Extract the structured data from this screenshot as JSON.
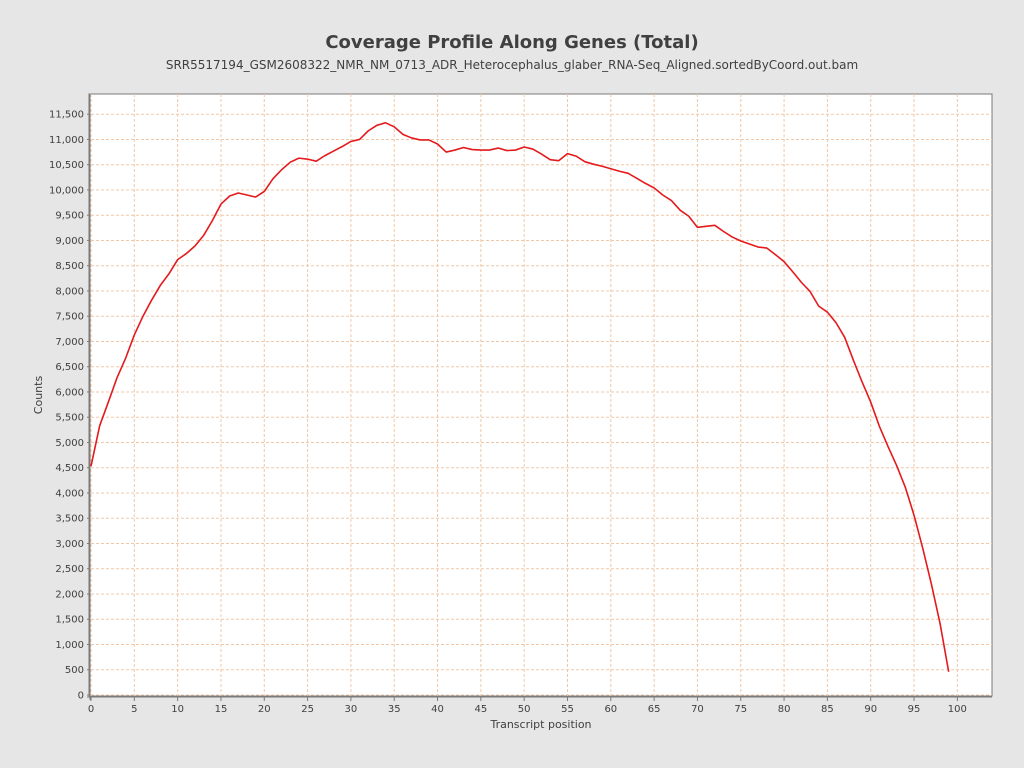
{
  "chart_data": {
    "type": "line",
    "title": "Coverage Profile Along Genes (Total)",
    "subtitle": "SRR5517194_GSM2608322_NMR_NM_0713_ADR_Heterocephalus_glaber_RNA-Seq_Aligned.sortedByCoord.out.bam",
    "xlabel": "Transcript position",
    "ylabel": "Counts",
    "xlim": [
      0,
      104
    ],
    "ylim": [
      0,
      11900
    ],
    "x_ticks": [
      0,
      5,
      10,
      15,
      20,
      25,
      30,
      35,
      40,
      45,
      50,
      55,
      60,
      65,
      70,
      75,
      80,
      85,
      90,
      95,
      100
    ],
    "x_tick_labels": [
      "0",
      "5",
      "10",
      "15",
      "20",
      "25",
      "30",
      "35",
      "40",
      "45",
      "50",
      "55",
      "60",
      "65",
      "70",
      "75",
      "80",
      "85",
      "90",
      "95",
      "100"
    ],
    "y_ticks": [
      0,
      500,
      1000,
      1500,
      2000,
      2500,
      3000,
      3500,
      4000,
      4500,
      5000,
      5500,
      6000,
      6500,
      7000,
      7500,
      8000,
      8500,
      9000,
      9500,
      10000,
      10500,
      11000,
      11500
    ],
    "y_tick_labels": [
      "0",
      "500",
      "1,000",
      "1,500",
      "2,000",
      "2,500",
      "3,000",
      "3,500",
      "4,000",
      "4,500",
      "5,000",
      "5,500",
      "6,000",
      "6,500",
      "7,000",
      "7,500",
      "8,000",
      "8,500",
      "9,000",
      "9,500",
      "10,000",
      "10,500",
      "11,000",
      "11,500"
    ],
    "grid": true,
    "series": [
      {
        "color": "#e41a1c",
        "x": [
          0,
          1,
          2,
          3,
          4,
          5,
          6,
          7,
          8,
          9,
          10,
          11,
          12,
          13,
          14,
          15,
          16,
          17,
          18,
          19,
          20,
          21,
          22,
          23,
          24,
          25,
          26,
          27,
          28,
          29,
          30,
          31,
          32,
          33,
          34,
          35,
          36,
          37,
          38,
          39,
          40,
          41,
          42,
          43,
          44,
          45,
          46,
          47,
          48,
          49,
          50,
          51,
          52,
          53,
          54,
          55,
          56,
          57,
          58,
          59,
          60,
          61,
          62,
          63,
          64,
          65,
          66,
          67,
          68,
          69,
          70,
          71,
          72,
          73,
          74,
          75,
          76,
          77,
          78,
          79,
          80,
          81,
          82,
          83,
          84,
          85,
          86,
          87,
          88,
          89,
          90,
          91,
          92,
          93,
          94,
          95,
          96,
          97,
          98,
          99
        ],
        "values": [
          4530,
          5330,
          5800,
          6280,
          6670,
          7130,
          7500,
          7820,
          8110,
          8340,
          8620,
          8740,
          8890,
          9100,
          9390,
          9720,
          9880,
          9940,
          9900,
          9860,
          9970,
          10220,
          10400,
          10550,
          10630,
          10610,
          10570,
          10680,
          10770,
          10860,
          10960,
          11000,
          11170,
          11280,
          11330,
          11250,
          11100,
          11030,
          10990,
          10990,
          10910,
          10750,
          10790,
          10840,
          10800,
          10790,
          10790,
          10830,
          10780,
          10790,
          10850,
          10810,
          10710,
          10600,
          10580,
          10720,
          10670,
          10560,
          10510,
          10470,
          10420,
          10370,
          10330,
          10230,
          10130,
          10040,
          9900,
          9790,
          9600,
          9480,
          9260,
          9280,
          9300,
          9180,
          9070,
          8990,
          8930,
          8870,
          8850,
          8720,
          8580,
          8380,
          8170,
          7990,
          7700,
          7580,
          7370,
          7080,
          6630,
          6200,
          5800,
          5320,
          4920,
          4540,
          4110,
          3560,
          2910,
          2200,
          1420,
          460
        ]
      }
    ]
  }
}
